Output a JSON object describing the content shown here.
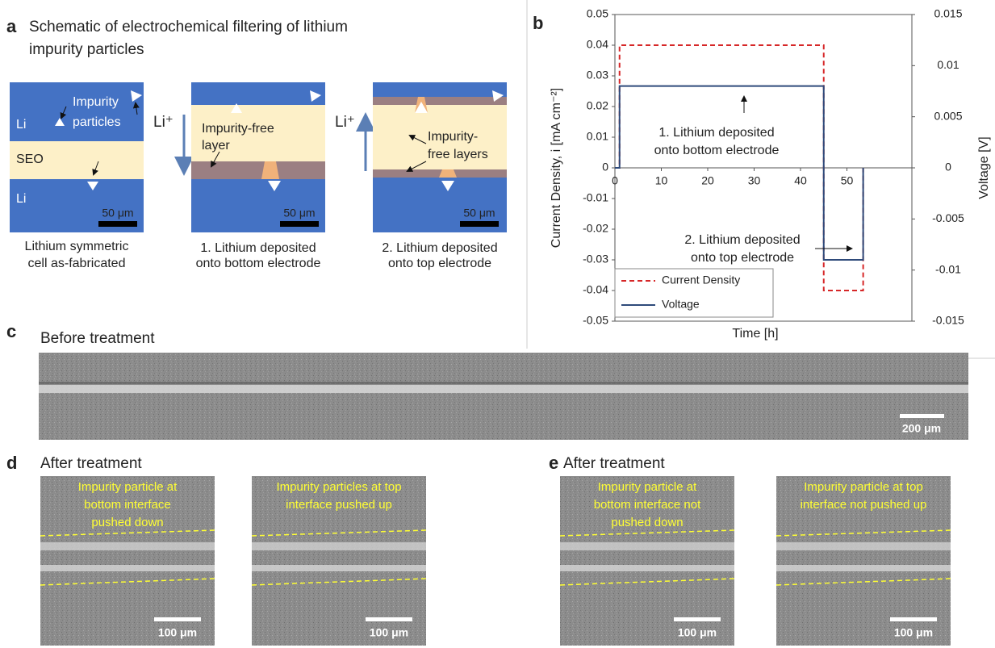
{
  "panel_a": {
    "letter": "a",
    "title_lines": [
      "Schematic of electrochemical filtering of lithium",
      "impurity particles"
    ],
    "cell_1": {
      "impurity_label": [
        "Impurity",
        "particles"
      ],
      "top": "Li",
      "middle": "SEO",
      "bottom": "Li",
      "scale": "50 μm",
      "caption": [
        "Lithium symmetric",
        "cell as-fabricated"
      ]
    },
    "ion_1": "Li⁺",
    "cell_2": {
      "layer_label": [
        "Impurity-free",
        "layer"
      ],
      "scale": "50 μm",
      "caption": [
        "1. Lithium deposited",
        "onto bottom electrode"
      ]
    },
    "ion_2": "Li⁺",
    "cell_3": {
      "layer_label": [
        "Impurity-",
        "free layers"
      ],
      "scale": "50 μm",
      "caption": [
        "2. Lithium deposited",
        "onto top electrode"
      ]
    }
  },
  "panel_b": {
    "letter": "b"
  },
  "chart_data": {
    "type": "line",
    "x_label": "Time [h]",
    "y_label": "Current Density, i [mA cm⁻²]",
    "y2_label": "Voltage [V]",
    "xlim": [
      0,
      64
    ],
    "xticks": [
      0,
      10,
      20,
      30,
      40,
      50
    ],
    "ylim": [
      -0.05,
      0.05
    ],
    "yticks": [
      -0.05,
      -0.04,
      -0.03,
      -0.02,
      -0.01,
      0,
      0.01,
      0.02,
      0.03,
      0.04,
      0.05
    ],
    "y2lim": [
      -0.015,
      0.015
    ],
    "y2ticks": [
      -0.015,
      -0.01,
      -0.005,
      0,
      0.005,
      0.01,
      0.015
    ],
    "grid": false,
    "legend": "lower left",
    "series": [
      {
        "name": "Current Density",
        "color": "#d62728",
        "dashed": true,
        "x": [
          0,
          1,
          1,
          45,
          45,
          53.5,
          53.5
        ],
        "values": [
          0,
          0,
          0.04,
          0.04,
          -0.04,
          -0.04,
          0
        ]
      },
      {
        "name": "Voltage",
        "color": "#2e4a7a",
        "axis": "y2",
        "x": [
          0,
          1,
          1,
          45,
          45,
          53.5,
          53.5
        ],
        "values": [
          0,
          0,
          0.008,
          0.008,
          -0.009,
          -0.009,
          0
        ]
      }
    ],
    "annotations": [
      {
        "lines": [
          "1. Lithium deposited",
          "onto bottom electrode"
        ]
      },
      {
        "lines": [
          "2. Lithium deposited",
          "onto top electrode"
        ]
      }
    ]
  },
  "panel_c": {
    "letter": "c",
    "title": "Before treatment",
    "scale": "200 μm"
  },
  "panel_d": {
    "letter": "d",
    "title": "After treatment",
    "images": [
      {
        "caption": [
          "Impurity particle at",
          "bottom interface",
          "pushed down"
        ],
        "scale": "100 μm"
      },
      {
        "caption": [
          "Impurity particles at top",
          "interface pushed up"
        ],
        "scale": "100 μm"
      }
    ]
  },
  "panel_e": {
    "letter": "e",
    "title": "After treatment",
    "images": [
      {
        "caption": [
          "Impurity particle at",
          "bottom interface not",
          "pushed down"
        ],
        "scale": "100 μm"
      },
      {
        "caption": [
          "Impurity particle at top",
          "interface not pushed up"
        ],
        "scale": "100 μm"
      }
    ]
  }
}
